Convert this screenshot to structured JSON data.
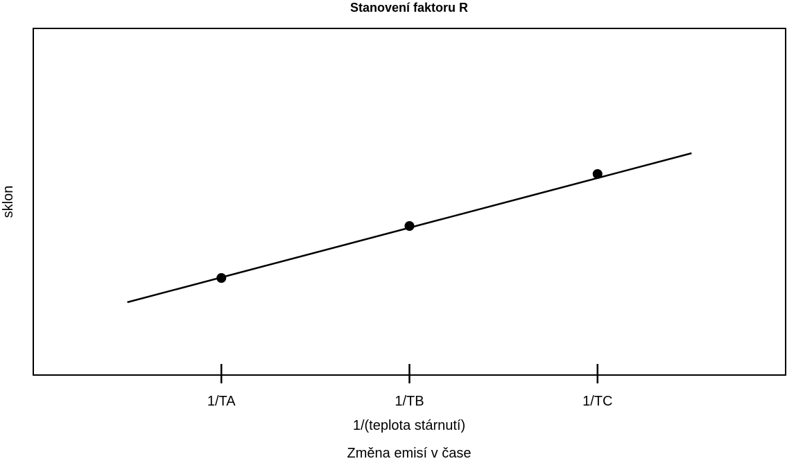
{
  "chart_data": {
    "type": "line",
    "title": "Stanovení faktoru R",
    "xlabel": "1/(teplota stárnutí)",
    "ylabel": "sklon",
    "caption": "Změna emisí v čase",
    "categories": [
      "1/TA",
      "1/TB",
      "1/TC"
    ],
    "points": [
      {
        "x": "1/TA",
        "y": 0.28
      },
      {
        "x": "1/TB",
        "y": 0.43
      },
      {
        "x": "1/TC",
        "y": 0.58
      }
    ],
    "fit_line": {
      "x_start": 0.5,
      "x_end": 3.5,
      "y_start": 0.21,
      "y_end": 0.64
    },
    "xlim": [
      0,
      4
    ],
    "ylim": [
      0,
      1
    ],
    "grid": false,
    "show_y_ticks": false,
    "colors": {
      "line": "#000000",
      "marker": "#000000",
      "frame": "#000000"
    }
  }
}
